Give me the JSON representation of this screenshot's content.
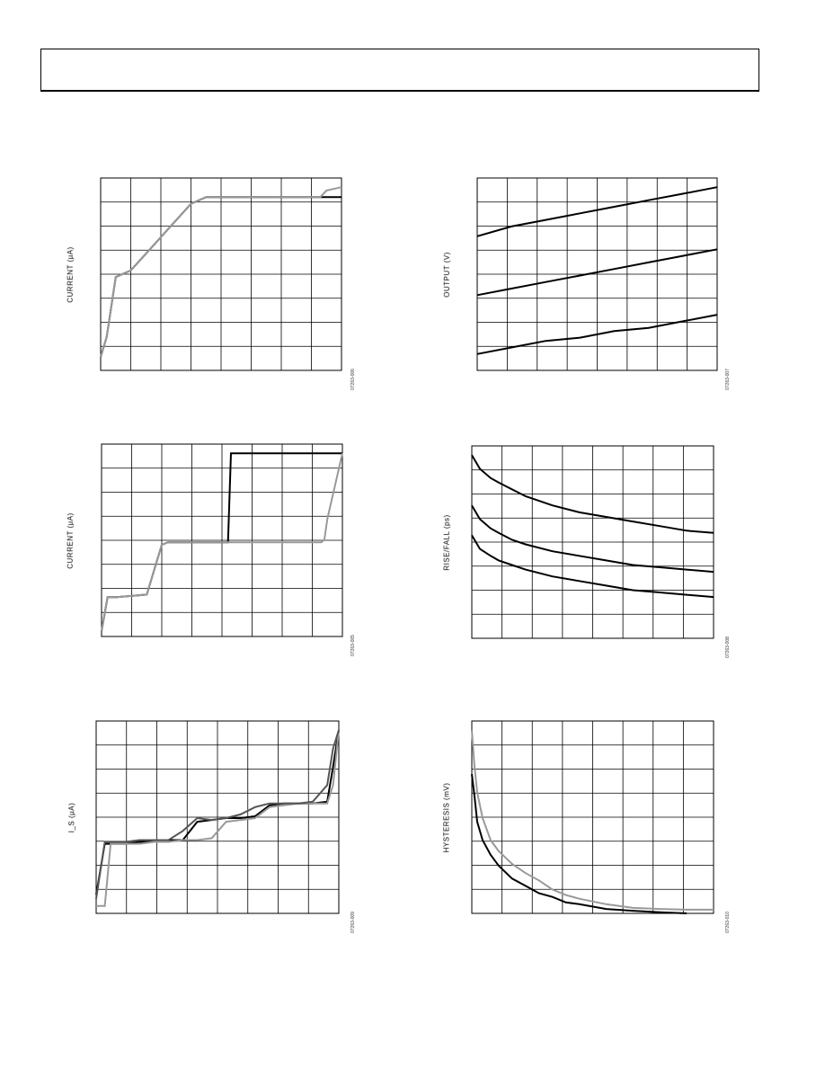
{
  "page": {
    "header": ""
  },
  "chart_data": [
    {
      "type": "line",
      "ylabel": "CURRENT (µA)",
      "figure_id": "07263-006",
      "grid": true,
      "x": [
        0,
        0.2,
        0.5,
        1.0,
        1.5,
        2.0,
        2.5,
        3.0,
        3.5,
        4.0,
        4.5,
        5.0,
        5.5,
        6.0,
        6.5,
        7.0,
        7.3,
        7.4,
        7.5,
        8.0
      ],
      "series": [
        {
          "color": "#000000",
          "values": [
            0.4,
            1.0,
            2.8,
            3.0,
            3.5,
            4.0,
            4.5,
            5.0,
            5.2,
            5.2,
            5.2,
            5.2,
            5.2,
            5.2,
            5.2,
            5.2,
            5.2,
            5.2,
            5.2,
            5.2
          ]
        },
        {
          "color": "#999999",
          "values": [
            0.4,
            1.0,
            2.8,
            3.0,
            3.5,
            4.0,
            4.5,
            5.0,
            5.2,
            5.2,
            5.2,
            5.2,
            5.2,
            5.2,
            5.2,
            5.2,
            5.2,
            5.3,
            5.4,
            5.5
          ]
        }
      ]
    },
    {
      "type": "line",
      "ylabel": "OUTPUT (V)",
      "figure_id": "07263-007",
      "grid": true,
      "x": [
        0,
        1,
        2,
        3,
        4,
        5,
        6,
        7
      ],
      "series": [
        {
          "color": "#000000",
          "values": [
            4.1,
            4.4,
            4.6,
            4.8,
            5.0,
            5.2,
            5.4,
            5.6
          ]
        },
        {
          "color": "#000000",
          "values": [
            2.3,
            2.5,
            2.7,
            2.9,
            3.1,
            3.3,
            3.5,
            3.7
          ]
        },
        {
          "color": "#000000",
          "values": [
            0.5,
            0.7,
            0.9,
            1.0,
            1.2,
            1.3,
            1.5,
            1.7
          ]
        }
      ]
    },
    {
      "type": "line",
      "ylabel": "CURRENT (µA)",
      "figure_id": "07263-005",
      "grid": true,
      "x": [
        0,
        0.2,
        0.5,
        1.5,
        2.0,
        2.2,
        2.5,
        3.0,
        3.5,
        4.0,
        4.2,
        4.3,
        5.0,
        6.0,
        7.0,
        7.3,
        7.4,
        7.5,
        8.0
      ],
      "series": [
        {
          "color": "#000000",
          "values": [
            0.2,
            1.5,
            1.5,
            1.6,
            3.5,
            3.6,
            3.6,
            3.6,
            3.6,
            3.6,
            3.6,
            7.0,
            7.0,
            7.0,
            7.0,
            7.0,
            7.0,
            7.0,
            7.0
          ]
        },
        {
          "color": "#999999",
          "values": [
            0.2,
            1.5,
            1.5,
            1.6,
            3.5,
            3.6,
            3.6,
            3.6,
            3.6,
            3.6,
            3.6,
            3.6,
            3.6,
            3.6,
            3.6,
            3.6,
            3.7,
            4.5,
            7.0
          ]
        }
      ]
    },
    {
      "type": "line",
      "ylabel": "RISE/FALL (ps)",
      "figure_id": "07263-008",
      "grid": true,
      "x": [
        0,
        0.3,
        0.7,
        1,
        1.5,
        2,
        3,
        4,
        5,
        6,
        7,
        8,
        9
      ],
      "series": [
        {
          "color": "#000000",
          "values": [
            8.0,
            7.4,
            7.0,
            6.8,
            6.5,
            6.2,
            5.8,
            5.5,
            5.3,
            5.1,
            4.9,
            4.7,
            4.6
          ]
        },
        {
          "color": "#000000",
          "values": [
            5.8,
            5.2,
            4.8,
            4.6,
            4.3,
            4.1,
            3.8,
            3.6,
            3.4,
            3.2,
            3.1,
            3.0,
            2.9
          ]
        },
        {
          "color": "#000000",
          "values": [
            4.5,
            3.9,
            3.6,
            3.4,
            3.2,
            3.0,
            2.7,
            2.5,
            2.3,
            2.1,
            2.0,
            1.9,
            1.8
          ]
        }
      ]
    },
    {
      "type": "line",
      "ylabel": "I_S (µA)",
      "figure_id": "07263-009",
      "grid": true,
      "x": [
        0,
        0.3,
        0.5,
        1.0,
        1.5,
        2.0,
        2.5,
        3.0,
        3.5,
        4.0,
        4.5,
        5.0,
        5.5,
        6.0,
        6.5,
        7.0,
        7.5,
        8.0,
        8.2,
        8.4
      ],
      "series": [
        {
          "color": "#000000",
          "values": [
            1.0,
            3.8,
            3.8,
            3.8,
            3.9,
            3.9,
            4.0,
            4.0,
            5.0,
            5.1,
            5.2,
            5.2,
            5.3,
            5.9,
            6.0,
            6.0,
            6.0,
            6.1,
            8.0,
            10.0
          ]
        },
        {
          "color": "#999999",
          "values": [
            0.4,
            0.4,
            3.8,
            3.8,
            3.8,
            3.9,
            3.9,
            4.0,
            4.0,
            4.1,
            5.0,
            5.1,
            5.2,
            5.8,
            5.9,
            6.0,
            6.0,
            6.0,
            7.0,
            10.0
          ]
        },
        {
          "color": "#555555",
          "values": [
            0.8,
            3.9,
            3.9,
            3.9,
            4.0,
            4.0,
            4.0,
            4.5,
            5.2,
            5.1,
            5.2,
            5.4,
            5.8,
            6.0,
            6.0,
            6.0,
            6.1,
            7.0,
            9.0,
            10.0
          ]
        }
      ]
    },
    {
      "type": "line",
      "ylabel": "HYSTERESIS (mV)",
      "figure_id": "07263-010",
      "grid": true,
      "x": [
        0,
        0.1,
        0.2,
        0.4,
        0.7,
        1.0,
        1.5,
        2.0,
        2.5,
        3.0,
        3.5,
        4.0,
        5.0,
        6.0,
        7.0,
        8.0,
        9.0
      ],
      "series": [
        {
          "color": "#999999",
          "values": [
            5.0,
            4.0,
            3.3,
            2.6,
            2.0,
            1.7,
            1.35,
            1.1,
            0.9,
            0.65,
            0.5,
            0.4,
            0.25,
            0.15,
            0.12,
            0.1,
            0.1
          ]
        },
        {
          "color": "#000000",
          "values": [
            3.8,
            3.2,
            2.5,
            2.0,
            1.6,
            1.3,
            0.95,
            0.75,
            0.55,
            0.45,
            0.3,
            0.25,
            0.12,
            0.07,
            0.03,
            0.0,
            null
          ]
        }
      ]
    }
  ]
}
